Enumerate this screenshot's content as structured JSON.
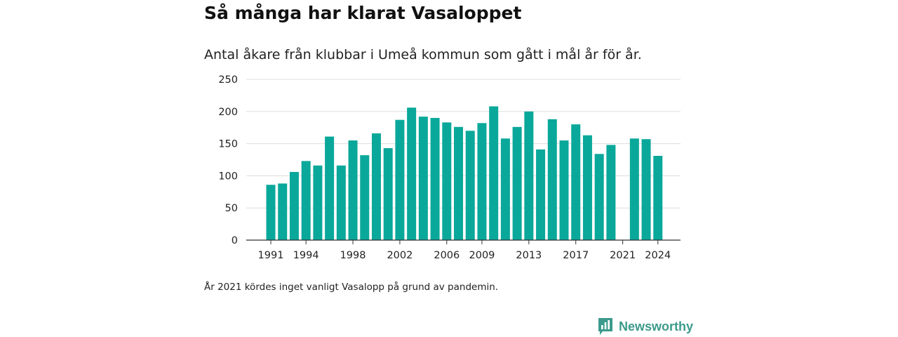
{
  "title": "Så många har klarat Vasaloppet",
  "subtitle": "Antal åkare från klubbar i Umeå kommun som gått i mål år för år.",
  "footnote": "År 2021 kördes inget vanligt Vasalopp på grund av pandemin.",
  "brand": {
    "name": "Newsworthy",
    "icon": "bar-chart-speech-bubble-icon",
    "color": "#3c9a8c"
  },
  "colors": {
    "bar": "#0aa89a",
    "grid": "#dddddd",
    "axis": "#333333",
    "text": "#222222"
  },
  "chart_data": {
    "type": "bar",
    "title": "",
    "xlabel": "",
    "ylabel": "",
    "ylim": [
      0,
      250
    ],
    "yticks": [
      0,
      50,
      100,
      150,
      200,
      250
    ],
    "xtick_labels": [
      "1991",
      "1994",
      "1998",
      "2002",
      "2006",
      "2009",
      "2013",
      "2017",
      "2021",
      "2024"
    ],
    "grid": "horizontal",
    "categories": [
      1991,
      1992,
      1993,
      1994,
      1995,
      1996,
      1997,
      1998,
      1999,
      2000,
      2001,
      2002,
      2003,
      2004,
      2005,
      2006,
      2007,
      2008,
      2009,
      2010,
      2011,
      2012,
      2013,
      2014,
      2015,
      2016,
      2017,
      2018,
      2019,
      2020,
      2021,
      2022,
      2023,
      2024
    ],
    "values": [
      86,
      88,
      106,
      123,
      116,
      161,
      116,
      155,
      132,
      166,
      143,
      187,
      206,
      192,
      190,
      183,
      176,
      170,
      182,
      208,
      158,
      176,
      200,
      141,
      188,
      155,
      180,
      163,
      134,
      148,
      null,
      158,
      157,
      131
    ]
  }
}
